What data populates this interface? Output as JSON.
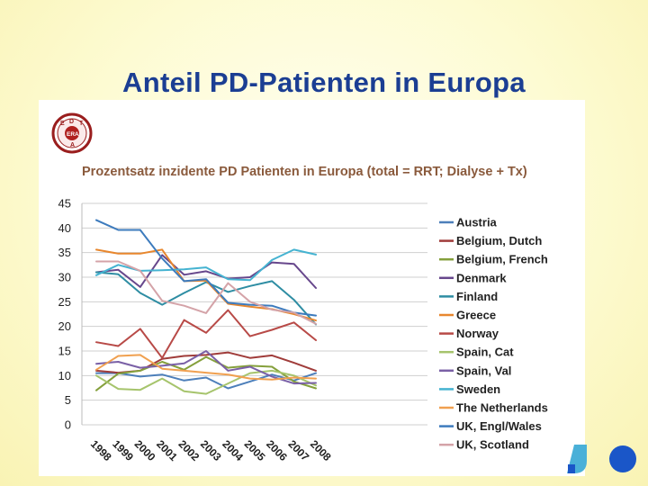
{
  "slide": {
    "title": "Anteil PD-Patienten in Europa",
    "logo_letters": [
      "E",
      "D",
      "T",
      "A",
      "ERA"
    ]
  },
  "chart_data": {
    "type": "line",
    "title": "Prozentsatz inzidente PD Patienten in Europa (total = RRT; Dialyse + Tx)",
    "xlabel": "",
    "ylabel": "",
    "ylim": [
      0,
      45
    ],
    "yticks": [
      0,
      5,
      10,
      15,
      20,
      25,
      30,
      35,
      40,
      45
    ],
    "grid": true,
    "legend_position": "right",
    "categories": [
      "1998",
      "1999",
      "2000",
      "2001",
      "2002",
      "2003",
      "2004",
      "2005",
      "2006",
      "2007",
      "2008"
    ],
    "series": [
      {
        "name": "Austria",
        "color": "#4d7fba",
        "values": [
          10.5,
          10.5,
          9.8,
          10.2,
          9.0,
          9.6,
          7.4,
          8.8,
          10.2,
          9.0,
          10.5
        ]
      },
      {
        "name": "Belgium, Dutch",
        "color": "#a03c3a",
        "values": [
          11.0,
          10.6,
          11.0,
          13.4,
          14.0,
          14.2,
          14.7,
          13.6,
          14.1,
          12.6,
          11.0
        ]
      },
      {
        "name": "Belgium, French",
        "color": "#85a03c",
        "values": [
          7.0,
          10.4,
          11.0,
          12.8,
          11.2,
          13.8,
          11.6,
          12.0,
          11.8,
          8.8,
          7.4
        ]
      },
      {
        "name": "Denmark",
        "color": "#67478c",
        "values": [
          31.0,
          31.5,
          28.0,
          34.5,
          30.5,
          31.2,
          29.7,
          30.0,
          33.0,
          32.7,
          27.8
        ]
      },
      {
        "name": "Finland",
        "color": "#2e8da3",
        "values": [
          31.0,
          30.6,
          26.8,
          24.4,
          26.8,
          29.0,
          27.0,
          28.2,
          29.2,
          25.4,
          20.4
        ]
      },
      {
        "name": "Greece",
        "color": "#e8872e",
        "values": [
          35.6,
          34.8,
          34.8,
          35.6,
          29.2,
          29.3,
          24.6,
          24.0,
          23.5,
          22.5,
          21.2
        ]
      },
      {
        "name": "Norway",
        "color": "#b84a47",
        "values": [
          16.8,
          16.0,
          19.5,
          13.6,
          21.3,
          18.7,
          23.3,
          18.0,
          19.3,
          20.8,
          17.2
        ]
      },
      {
        "name": "Spain, Cat",
        "color": "#a6c46c",
        "values": [
          10.0,
          7.3,
          7.1,
          9.4,
          6.8,
          6.3,
          8.4,
          10.5,
          11.0,
          10.0,
          8.0
        ]
      },
      {
        "name": "Spain, Val",
        "color": "#7a60a6",
        "values": [
          12.4,
          12.8,
          11.6,
          12.0,
          12.5,
          15.0,
          11.0,
          11.8,
          9.8,
          8.4,
          8.5
        ]
      },
      {
        "name": "Sweden",
        "color": "#45b3d1",
        "values": [
          30.4,
          32.5,
          31.3,
          31.4,
          31.6,
          32.0,
          29.6,
          29.4,
          33.5,
          35.6,
          34.6
        ]
      },
      {
        "name": "The Netherlands",
        "color": "#f0a050",
        "values": [
          11.2,
          14.0,
          14.2,
          11.4,
          11.0,
          10.6,
          10.2,
          9.4,
          9.2,
          9.6,
          9.4
        ]
      },
      {
        "name": "UK, Engl/Wales",
        "color": "#3d7bbd",
        "values": [
          41.6,
          39.6,
          39.6,
          33.8,
          29.2,
          29.6,
          24.8,
          24.4,
          24.2,
          22.8,
          22.2
        ]
      },
      {
        "name": "UK, Scotland",
        "color": "#d4a3a8",
        "values": [
          33.2,
          33.2,
          31.3,
          25.2,
          24.2,
          22.7,
          28.8,
          25.0,
          23.4,
          22.8,
          20.5
        ]
      }
    ]
  },
  "decor": {
    "dot_colors": [
      "#4ab0d8",
      "#1a56c8"
    ]
  }
}
